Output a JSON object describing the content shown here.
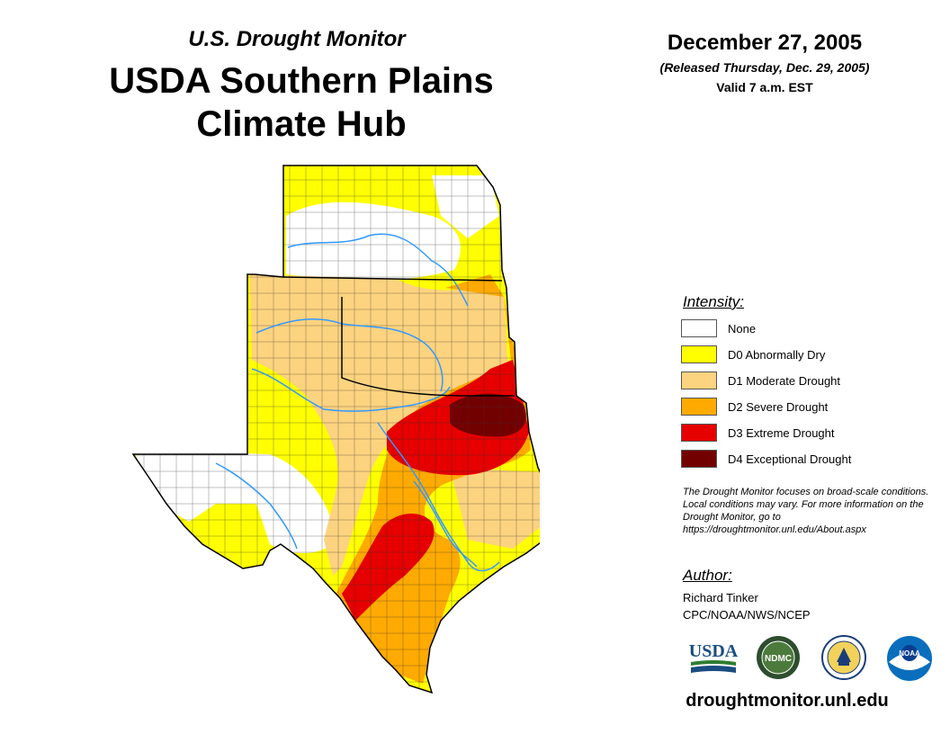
{
  "header": {
    "subtitle": "U.S. Drought Monitor",
    "title_line1": "USDA Southern Plains",
    "title_line2": "Climate Hub",
    "date": "December 27, 2005",
    "released": "(Released Thursday, Dec. 29, 2005)",
    "valid": "Valid 7 a.m. EST"
  },
  "legend": {
    "title": "Intensity:",
    "items": [
      {
        "label": "None",
        "color": "#ffffff"
      },
      {
        "label": "D0 Abnormally Dry",
        "color": "#ffff00"
      },
      {
        "label": "D1 Moderate Drought",
        "color": "#fcd37f"
      },
      {
        "label": "D2 Severe Drought",
        "color": "#ffaa00"
      },
      {
        "label": "D3 Extreme Drought",
        "color": "#e60000"
      },
      {
        "label": "D4 Exceptional Drought",
        "color": "#730000"
      }
    ]
  },
  "note": "The Drought Monitor focuses on broad-scale conditions. Local conditions may vary. For more information on the Drought Monitor, go to https://droughtmonitor.unl.edu/About.aspx",
  "author": {
    "title": "Author:",
    "name": "Richard Tinker",
    "org": "CPC/NOAA/NWS/NCEP"
  },
  "logos": {
    "usda": "USDA",
    "ndmc": "NDMC",
    "noaa": "NOAA"
  },
  "footer": {
    "website": "droughtmonitor.unl.edu"
  },
  "colors": {
    "river": "#3399ff",
    "county_line": "#333333"
  }
}
